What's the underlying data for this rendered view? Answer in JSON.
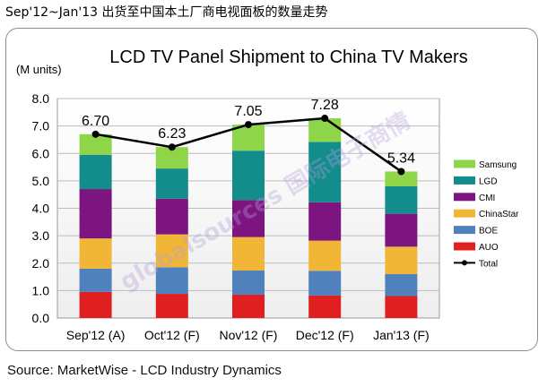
{
  "page_header": "Sep'12~Jan'13 出货至中国本土厂商电视面板的数量走势",
  "source_note": "Source: MarketWise - LCD Industry Dynamics",
  "watermark": "globalsources 国际电子商情",
  "chart_data": {
    "type": "bar",
    "stacked": true,
    "title": "LCD TV Panel Shipment to China TV Makers",
    "ylabel": "(M units)",
    "xlabel": "",
    "ylim": [
      0,
      8
    ],
    "yticks": [
      "0.0",
      "1.0",
      "2.0",
      "3.0",
      "4.0",
      "5.0",
      "6.0",
      "7.0",
      "8.0"
    ],
    "grid": true,
    "legend_position": "right",
    "categories": [
      "Sep'12 (A)",
      "Oct'12 (F)",
      "Nov'12 (F)",
      "Dec'12 (F)",
      "Jan'13 (F)"
    ],
    "series": [
      {
        "name": "AUO",
        "color": "#e02020",
        "values": [
          0.95,
          0.88,
          0.85,
          0.82,
          0.8
        ]
      },
      {
        "name": "BOE",
        "color": "#4f81bd",
        "values": [
          0.85,
          0.97,
          0.88,
          0.9,
          0.8
        ]
      },
      {
        "name": "ChinaStar",
        "color": "#f2b636",
        "values": [
          1.1,
          1.2,
          1.22,
          1.1,
          1.0
        ]
      },
      {
        "name": "CMI",
        "color": "#7d1580",
        "values": [
          1.8,
          1.3,
          1.35,
          1.4,
          1.2
        ]
      },
      {
        "name": "LGD",
        "color": "#138c8c",
        "values": [
          1.25,
          1.1,
          1.8,
          2.2,
          1.0
        ]
      },
      {
        "name": "Samsung",
        "color": "#8ed54a",
        "values": [
          0.75,
          0.78,
          0.95,
          0.86,
          0.54
        ]
      }
    ],
    "total": {
      "name": "Total",
      "color": "#000000",
      "values": [
        6.7,
        6.23,
        7.05,
        7.28,
        5.34
      ],
      "labels": [
        "6.70",
        "6.23",
        "7.05",
        "7.28",
        "5.34"
      ]
    },
    "legend_order": [
      "Samsung",
      "LGD",
      "CMI",
      "ChinaStar",
      "BOE",
      "AUO",
      "Total"
    ]
  }
}
